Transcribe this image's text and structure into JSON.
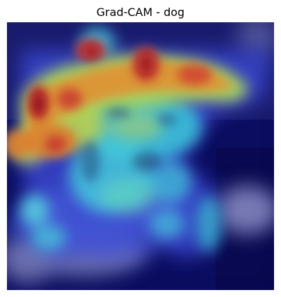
{
  "figure": {
    "title": "Grad-CAM - dog"
  },
  "colors": {
    "background": "#ffffff",
    "title_text": "#000000",
    "low_activation": "#0a0c5e",
    "mid_activation": "#35a9d8",
    "high_activation": "#d3312a",
    "dog_fur": "#8a8fc8"
  }
}
